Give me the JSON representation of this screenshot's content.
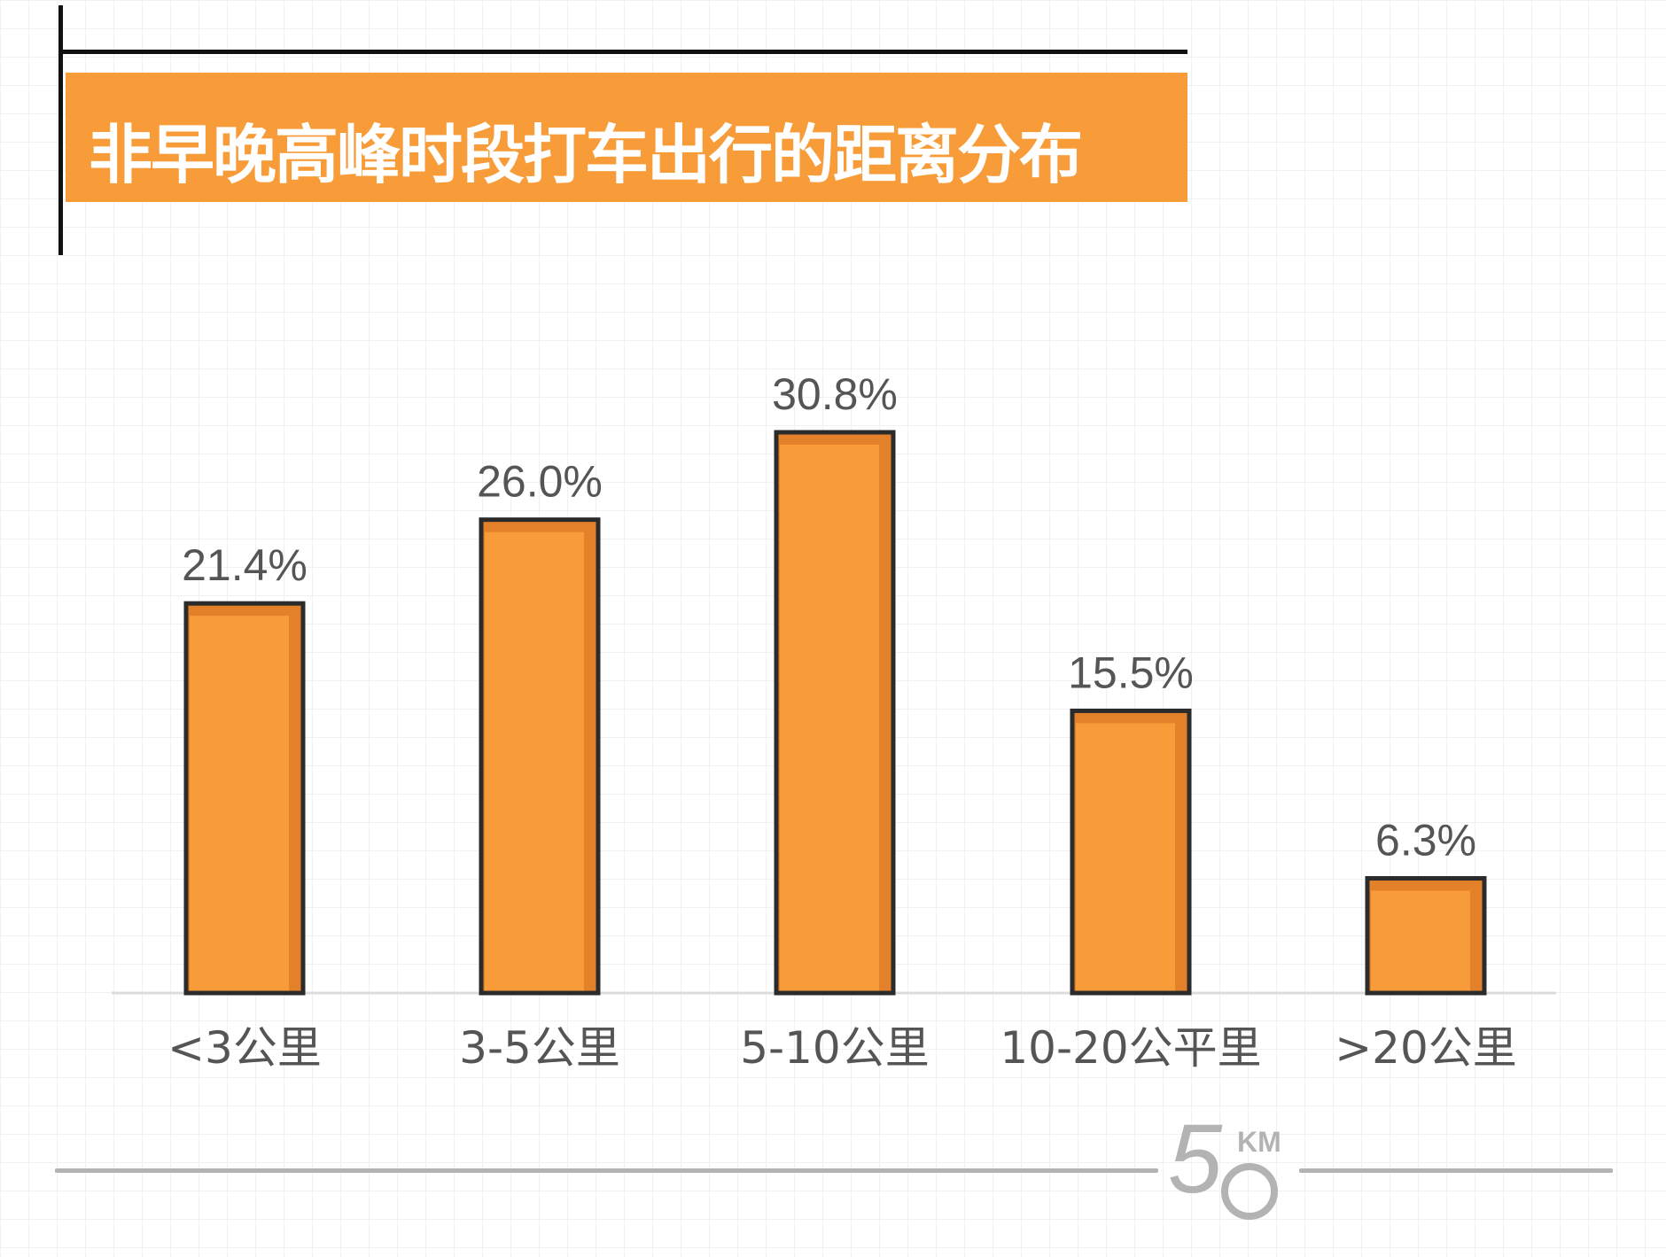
{
  "title": "非早晚高峰时段打车出行的距离分布",
  "logo": {
    "number": "5",
    "unit": "KM"
  },
  "colors": {
    "bar": "#f89c3a",
    "bar_shade": "#e3802a",
    "bar_border": "#2b2b2b",
    "title_bg": "#f89c3a",
    "label": "#555555"
  },
  "chart_data": {
    "type": "bar",
    "title": "非早晚高峰时段打车出行的距离分布",
    "categories": [
      "<3公里",
      "3-5公里",
      "5-10公里",
      "10-20公平里",
      ">20公里"
    ],
    "values": [
      21.4,
      26.0,
      30.8,
      15.5,
      6.3
    ],
    "value_labels": [
      "21.4%",
      "26.0%",
      "30.8%",
      "15.5%",
      "6.3%"
    ],
    "unit": "%",
    "ylim": [
      0,
      30.8
    ],
    "grid": false,
    "legend": "none"
  }
}
